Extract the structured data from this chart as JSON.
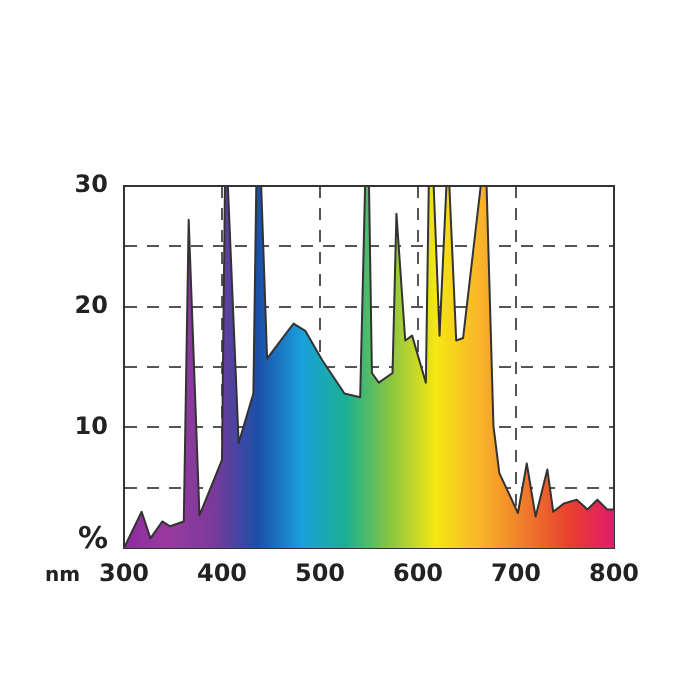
{
  "chart_data": {
    "type": "area",
    "xlabel": "nm",
    "ylabel": "%",
    "xlim": [
      300,
      800
    ],
    "xticks": [
      300,
      400,
      500,
      600,
      700,
      800
    ],
    "ylim": [
      0,
      30
    ],
    "yticks": [
      {
        "value": 0,
        "label": null
      },
      {
        "value": 5,
        "label": null
      },
      10,
      {
        "value": 15,
        "label": null
      },
      20,
      {
        "value": 25,
        "label": null
      },
      30
    ],
    "grid": true,
    "legend": false,
    "marker": "none",
    "series": [
      {
        "color": "#333333",
        "x": [
          300,
          318,
          327,
          339,
          347,
          361,
          366,
          377,
          400,
          403,
          406,
          417,
          432,
          435,
          440,
          446,
          460,
          473,
          485,
          502,
          525,
          541,
          546,
          550,
          553,
          560,
          574,
          578,
          587,
          594,
          608,
          611,
          616,
          622,
          629,
          632,
          639,
          646,
          664,
          670,
          677,
          683,
          702,
          711,
          720,
          732,
          738,
          749,
          762,
          773,
          783,
          793,
          800
        ],
        "values": [
          0,
          3.0,
          0.8,
          2.2,
          1.8,
          2.2,
          27.2,
          2.7,
          7.3,
          30,
          30,
          8.7,
          12.8,
          30,
          30,
          15.7,
          17.2,
          18.6,
          18,
          15.6,
          12.8,
          12.5,
          30,
          30,
          14.5,
          13.7,
          14.5,
          27.7,
          17.2,
          17.6,
          13.7,
          30,
          30,
          17.6,
          30,
          30,
          17.2,
          17.4,
          30,
          30,
          10.1,
          6.2,
          2.9,
          7.0,
          2.6,
          6.5,
          3.0,
          3.7,
          4.0,
          3.2,
          4.0,
          3.2,
          3.2
        ]
      }
    ]
  }
}
